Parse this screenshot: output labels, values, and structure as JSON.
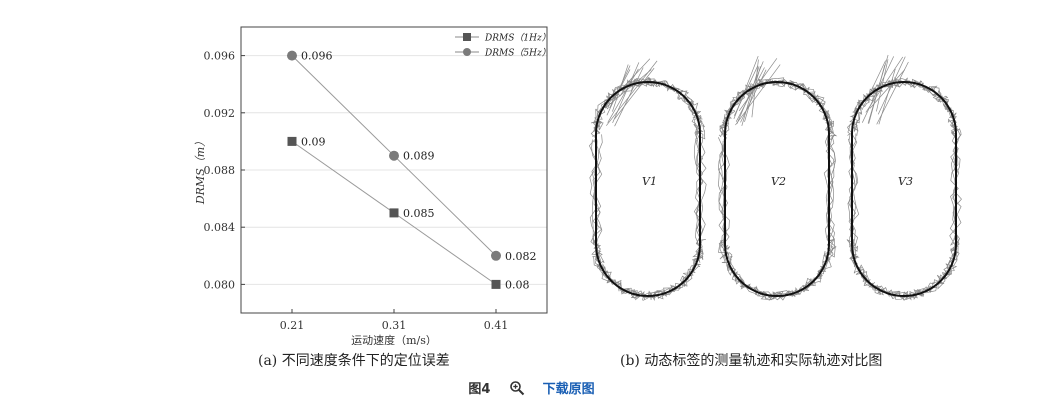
{
  "chart_data": [
    {
      "type": "line",
      "panel": "a",
      "caption": "(a)  不同速度条件下的定位误差",
      "xlabel": "运动速度（m/s）",
      "ylabel": "DRMS（m）",
      "categories": [
        "0.21",
        "0.31",
        "0.41"
      ],
      "x": [
        0.21,
        0.31,
        0.41
      ],
      "ylim": [
        0.078,
        0.098
      ],
      "yticks": [
        0.08,
        0.084,
        0.088,
        0.092,
        0.096
      ],
      "ytick_labels": [
        "0.080",
        "0.084",
        "0.088",
        "0.092",
        "0.096"
      ],
      "grid": true,
      "legend_position": "top-right",
      "series": [
        {
          "name": "DRMS（1Hz）",
          "marker": "square",
          "values": [
            0.09,
            0.085,
            0.08
          ],
          "labels": [
            "0.09",
            "0.085",
            "0.08"
          ],
          "color": "#555555"
        },
        {
          "name": "DRMS（5Hz）",
          "marker": "circle",
          "values": [
            0.096,
            0.089,
            0.082
          ],
          "labels": [
            "0.096",
            "0.089",
            "0.082"
          ],
          "color": "#7a7a7a"
        }
      ]
    },
    {
      "type": "scatter",
      "panel": "b",
      "caption": "(b)  动态标签的测量轨迹和实际轨迹对比图",
      "track_labels": [
        "V1",
        "V2",
        "V3"
      ],
      "actual_track_color": "#111111",
      "measured_track_color": "#8a8a8a"
    }
  ],
  "footer": {
    "figure_label": "图4",
    "zoom_icon": "magnifier-plus-icon",
    "download_link": "下载原图",
    "link_color": "#1a5fb4"
  }
}
